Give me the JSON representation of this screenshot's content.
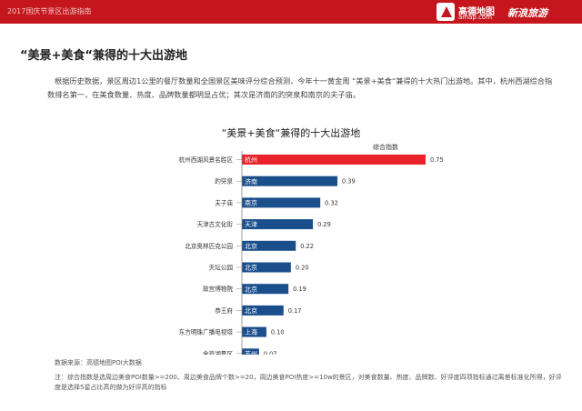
{
  "header": {
    "report_name": "2017国庆节景区出游指南",
    "brand_amap_name": "高德地图",
    "brand_amap_url": "amap.com",
    "brand_sina": "新浪旅游",
    "bar_color": "#c4161c"
  },
  "heading": "“美景+美食“兼得的十大出游地",
  "intro": "根据历史数据，景区周边1公里的餐厅数量和全国景区美味评分综合预测，今年十一黄金周 “美景+美食“兼得的十大热门出游地。其中，杭州西湖综合指数排名第一，在美食数量、热度、品牌数量都明显占优；其次是济南的趵突泉和南京的夫子庙。",
  "chart_data": {
    "type": "bar",
    "orientation": "horizontal",
    "title": "“美景+美食“兼得的十大出游地",
    "value_label": "综合指数",
    "categories": [
      "杭州西湖风景名胜区",
      "趵突泉",
      "夫子庙",
      "天津古文化街",
      "北京奥林匹克公园",
      "天坛公园",
      "故宫博物院",
      "恭王府",
      "东方明珠广播电视塔",
      "金鸡湖景区"
    ],
    "cities": [
      "杭州",
      "济南",
      "南京",
      "天津",
      "北京",
      "北京",
      "北京",
      "北京",
      "上海",
      "苏州"
    ],
    "values": [
      0.75,
      0.39,
      0.32,
      0.29,
      0.22,
      0.2,
      0.19,
      0.17,
      0.1,
      0.07
    ],
    "value_labels": [
      "0.75",
      "0.39",
      "0.32",
      "0.29",
      "0.22",
      "0.20",
      "0.19",
      "0.17",
      "0.10",
      "0.07"
    ],
    "xlim": [
      0,
      0.75
    ],
    "highlight_color": "#e8242a",
    "bar_color": "#1b4f8c"
  },
  "footer": {
    "source": "数据来源：高德地图POI大数据",
    "note": "注：综合指数是选周边美食POI数量>=200、周边美食品牌个数>=20，周边美食POI热度>=10w的景区，对美食数量、热度、品牌数、好评度四项指标通过离差标准化所得，好评度是选择5星占比高的做为好评高的指标"
  }
}
